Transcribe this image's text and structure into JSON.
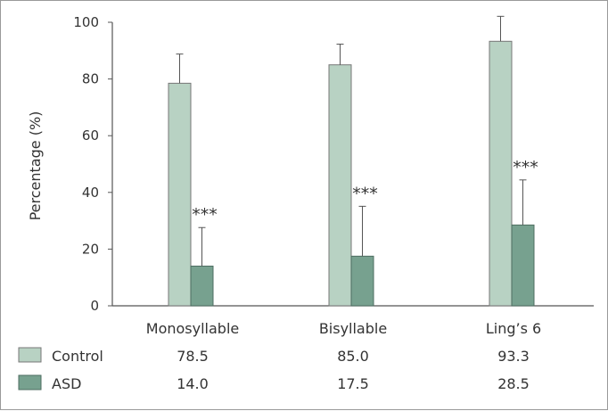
{
  "chart_data": {
    "type": "bar",
    "title": "",
    "xlabel": "",
    "ylabel": "Percentage (%)",
    "ylim": [
      0,
      100
    ],
    "yticks": [
      0,
      20,
      40,
      60,
      80,
      100
    ],
    "ytick_labels": [
      "0",
      "20",
      "40",
      "60",
      "80",
      "100"
    ],
    "categories": [
      "Monosyllable",
      "Bisyllable",
      "Ling’s 6"
    ],
    "series": [
      {
        "name": "Control",
        "values": [
          78.5,
          85.0,
          93.3
        ],
        "value_labels": [
          "78.5",
          "85.0",
          "93.3"
        ],
        "error_upper": [
          10.3,
          7.3,
          8.8
        ],
        "color": "#b8d2c3",
        "stroke": "#777777"
      },
      {
        "name": "ASD",
        "values": [
          14.0,
          17.5,
          28.5
        ],
        "value_labels": [
          "14.0",
          "17.5",
          "28.5"
        ],
        "error_upper": [
          13.6,
          17.6,
          15.9
        ],
        "color": "#77a18f",
        "stroke": "#4e6d61"
      }
    ],
    "annotations": [
      {
        "category_index": 0,
        "series_index": 1,
        "text": "***"
      },
      {
        "category_index": 1,
        "series_index": 1,
        "text": "***"
      },
      {
        "category_index": 2,
        "series_index": 1,
        "text": "***"
      }
    ]
  }
}
